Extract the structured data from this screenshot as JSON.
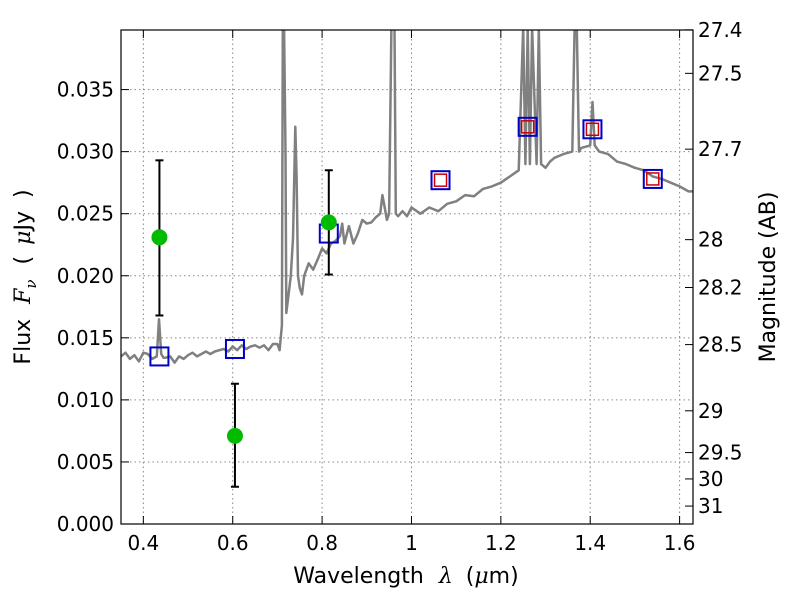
{
  "chart_data": {
    "type": "line",
    "xlabel_prefix": "Wavelength",
    "xlabel_symbol": "λ",
    "xlabel_unit_open": "(",
    "xlabel_unit_mu": "μ",
    "xlabel_unit_rest": "m)",
    "ylabel_prefix": "Flux",
    "ylabel_symbol": "F",
    "ylabel_sub": "ν",
    "ylabel_unit_open": "(",
    "ylabel_unit_mu": "μ",
    "ylabel_unit_rest": "Jy",
    "ylabel_unit_close": ")",
    "y2label": "Magnitude (AB)",
    "xlim": [
      0.35,
      1.63
    ],
    "ylim": [
      0.0,
      0.0398
    ],
    "grid": true,
    "x_ticks": [
      0.4,
      0.6,
      0.8,
      1.0,
      1.2,
      1.4,
      1.6
    ],
    "x_tick_labels": [
      "0.4",
      "0.6",
      "0.8",
      "1",
      "1.2",
      "1.4",
      "1.6"
    ],
    "y_ticks": [
      0.0,
      0.005,
      0.01,
      0.015,
      0.02,
      0.025,
      0.03,
      0.035
    ],
    "y_tick_labels": [
      "0.000",
      "0.005",
      "0.010",
      "0.015",
      "0.020",
      "0.025",
      "0.030",
      "0.035"
    ],
    "mag_ticks": [
      27.4,
      27.5,
      27.7,
      28,
      28.2,
      28.5,
      29,
      29.5,
      30,
      31
    ],
    "mag_tick_labels": [
      "27.4",
      "27.5",
      "27.7",
      "28",
      "28.2",
      "28.5",
      "29",
      "29.5",
      "30",
      "31"
    ],
    "colors": {
      "model": "#808080",
      "model_photometry": "#0000cc",
      "observed_photometry": "#cc0000",
      "detections": "#00bb00",
      "errorbars": "#000000",
      "grid": "#888888"
    },
    "model_spectrum": {
      "x": [
        0.35,
        0.36,
        0.37,
        0.38,
        0.39,
        0.4,
        0.41,
        0.42,
        0.43,
        0.435,
        0.44,
        0.445,
        0.45,
        0.46,
        0.47,
        0.48,
        0.49,
        0.5,
        0.51,
        0.52,
        0.53,
        0.54,
        0.55,
        0.56,
        0.57,
        0.58,
        0.59,
        0.6,
        0.61,
        0.62,
        0.63,
        0.64,
        0.65,
        0.66,
        0.67,
        0.68,
        0.69,
        0.7,
        0.705,
        0.71,
        0.712,
        0.715,
        0.718,
        0.72,
        0.725,
        0.73,
        0.735,
        0.74,
        0.743,
        0.746,
        0.75,
        0.755,
        0.76,
        0.77,
        0.78,
        0.79,
        0.8,
        0.81,
        0.82,
        0.83,
        0.84,
        0.845,
        0.85,
        0.86,
        0.87,
        0.88,
        0.89,
        0.9,
        0.91,
        0.92,
        0.93,
        0.935,
        0.94,
        0.945,
        0.95,
        0.955,
        0.958,
        0.962,
        0.965,
        0.97,
        0.98,
        0.99,
        1.0,
        1.02,
        1.04,
        1.06,
        1.08,
        1.1,
        1.12,
        1.14,
        1.16,
        1.18,
        1.2,
        1.22,
        1.24,
        1.25,
        1.255,
        1.26,
        1.265,
        1.27,
        1.28,
        1.285,
        1.29,
        1.3,
        1.31,
        1.32,
        1.34,
        1.36,
        1.365,
        1.37,
        1.375,
        1.38,
        1.4,
        1.405,
        1.41,
        1.42,
        1.44,
        1.46,
        1.48,
        1.5,
        1.52,
        1.54,
        1.56,
        1.58,
        1.6,
        1.62,
        1.63
      ],
      "y": [
        0.0135,
        0.0138,
        0.0133,
        0.0136,
        0.0131,
        0.0138,
        0.0137,
        0.0133,
        0.0135,
        0.0165,
        0.0137,
        0.0134,
        0.0134,
        0.0135,
        0.013,
        0.0135,
        0.0133,
        0.0136,
        0.0138,
        0.0135,
        0.0137,
        0.0139,
        0.0137,
        0.0139,
        0.014,
        0.0141,
        0.0139,
        0.0143,
        0.014,
        0.0144,
        0.0141,
        0.0143,
        0.0144,
        0.0142,
        0.0144,
        0.014,
        0.0145,
        0.0145,
        0.014,
        0.016,
        0.0398,
        0.0398,
        0.03,
        0.017,
        0.0185,
        0.02,
        0.023,
        0.032,
        0.028,
        0.02,
        0.019,
        0.0185,
        0.02,
        0.021,
        0.0205,
        0.0213,
        0.0222,
        0.0218,
        0.0226,
        0.0228,
        0.0232,
        0.0242,
        0.0226,
        0.024,
        0.0226,
        0.0234,
        0.0245,
        0.0242,
        0.0243,
        0.0247,
        0.025,
        0.0265,
        0.0255,
        0.0245,
        0.025,
        0.04,
        0.04,
        0.04,
        0.025,
        0.0248,
        0.0252,
        0.0248,
        0.0255,
        0.025,
        0.0255,
        0.0252,
        0.0258,
        0.026,
        0.0265,
        0.0264,
        0.027,
        0.0272,
        0.0275,
        0.028,
        0.0285,
        0.04,
        0.029,
        0.04,
        0.029,
        0.04,
        0.029,
        0.04,
        0.029,
        0.0287,
        0.0292,
        0.0295,
        0.0298,
        0.03,
        0.04,
        0.04,
        0.03,
        0.0303,
        0.0305,
        0.034,
        0.0305,
        0.03,
        0.0298,
        0.0292,
        0.029,
        0.0287,
        0.0285,
        0.028,
        0.0278,
        0.0275,
        0.0272,
        0.0268,
        0.0268
      ]
    },
    "model_photometry_squares": {
      "x": [
        0.436,
        0.605,
        0.815,
        1.065,
        1.26,
        1.405,
        1.54
      ],
      "y": [
        0.0135,
        0.0141,
        0.0234,
        0.0277,
        0.032,
        0.0318,
        0.0278
      ]
    },
    "observed_photometry_squares": {
      "x": [
        1.065,
        1.26,
        1.405,
        1.54
      ],
      "y": [
        0.0277,
        0.032,
        0.0318,
        0.0278
      ]
    },
    "detections": {
      "x": [
        0.436,
        0.605,
        0.815
      ],
      "y": [
        0.0231,
        0.0071,
        0.0243
      ],
      "err_low": [
        0.0168,
        0.003,
        0.0201
      ],
      "err_high": [
        0.0293,
        0.0113,
        0.0285
      ]
    }
  }
}
